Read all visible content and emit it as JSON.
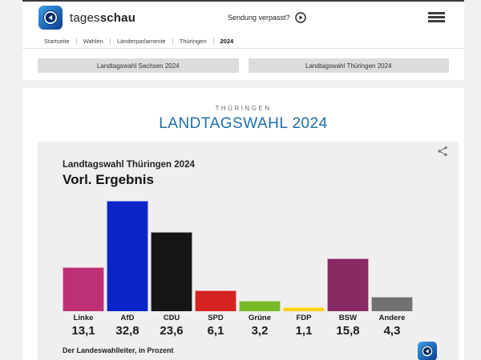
{
  "header": {
    "brand": {
      "regular": "tages",
      "bold": "schau"
    },
    "sendung_verpasst_label": "Sendung verpasst?"
  },
  "breadcrumb": {
    "items": [
      "Startseite",
      "Wahlen",
      "Länderparlamente",
      "Thüringen",
      "2024"
    ]
  },
  "nav_buttons": {
    "sachsen": "Landtagswahl Sachsen 2024",
    "thueringen": "Landtagswahl Thüringen 2024"
  },
  "page": {
    "kicker": "THÜRINGEN",
    "title": "LANDTAGSWAHL 2024"
  },
  "chart": {
    "subtitle": "Landtagswahl Thüringen 2024",
    "title": "Vorl. Ergebnis",
    "source": "Der Landeswahlleiter, in Prozent"
  },
  "chart_data": {
    "type": "bar",
    "title": "Landtagswahl Thüringen 2024 – Vorl. Ergebnis",
    "categories": [
      "Linke",
      "AfD",
      "CDU",
      "SPD",
      "Grüne",
      "FDP",
      "BSW",
      "Andere"
    ],
    "values": [
      13.1,
      32.8,
      23.6,
      6.1,
      3.2,
      1.1,
      15.8,
      4.3
    ],
    "value_labels": [
      "13,1",
      "32,8",
      "23,6",
      "6,1",
      "3,2",
      "1,1",
      "15,8",
      "4,3"
    ],
    "colors": [
      "#be3075",
      "#0c25c8",
      "#161616",
      "#d42321",
      "#79b928",
      "#f8ce13",
      "#8a2a64",
      "#717171"
    ],
    "unit": "Prozent",
    "ylim": [
      0,
      35
    ],
    "grid": false,
    "legend": false,
    "source": "Der Landeswahlleiter"
  },
  "colors": {
    "accent_blue": "#1c6ea8",
    "page_bg": "#f0f0f0",
    "card_bg": "#efefef",
    "button_bg": "#dcdcdc"
  }
}
